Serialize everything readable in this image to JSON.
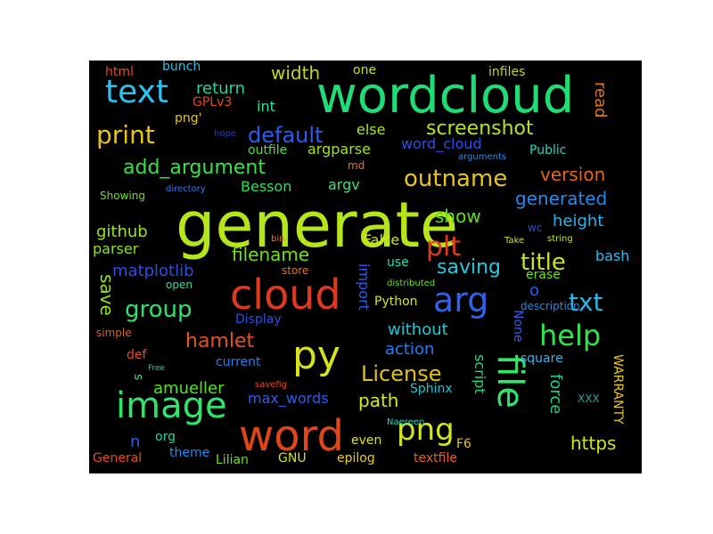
{
  "words": [
    {
      "text": "generate",
      "color": "#b6e619"
    },
    {
      "text": "wordcloud",
      "color": "#1fdc77"
    },
    {
      "text": "cloud",
      "color": "#e03a1e"
    },
    {
      "text": "word",
      "color": "#e0461c"
    },
    {
      "text": "image",
      "color": "#2ee66a"
    },
    {
      "text": "py",
      "color": "#d6e21c"
    },
    {
      "text": "text",
      "color": "#2bc3f0"
    },
    {
      "text": "file",
      "color": "#2fe86a"
    },
    {
      "text": "arg",
      "color": "#3060ee"
    },
    {
      "text": "print",
      "color": "#e8c31c"
    },
    {
      "text": "help",
      "color": "#2ee64c"
    },
    {
      "text": "png",
      "color": "#d2e61c"
    },
    {
      "text": "txt",
      "color": "#28b6e8"
    },
    {
      "text": "plt",
      "color": "#e03a1e"
    },
    {
      "text": "outname",
      "color": "#e8c41c"
    },
    {
      "text": "default",
      "color": "#2a5cf0"
    },
    {
      "text": "hamlet",
      "color": "#e8501c"
    },
    {
      "text": "License",
      "color": "#e0c01c"
    },
    {
      "text": "group",
      "color": "#30e26a"
    },
    {
      "text": "title",
      "color": "#c8e41c"
    },
    {
      "text": "add_argument",
      "color": "#3ae24a"
    },
    {
      "text": "screenshot",
      "color": "#b4e41c"
    },
    {
      "text": "saving",
      "color": "#24c8e0"
    },
    {
      "text": "filename",
      "color": "#6ee01c"
    },
    {
      "text": "version",
      "color": "#e8661c"
    },
    {
      "text": "generated",
      "color": "#1e8cf0"
    },
    {
      "text": "height",
      "color": "#2ab4ec"
    },
    {
      "text": "show",
      "color": "#5ee01c"
    },
    {
      "text": "width",
      "color": "#c8d41c"
    },
    {
      "text": "return",
      "color": "#1ed8a0"
    },
    {
      "text": "github",
      "color": "#9ce41c"
    },
    {
      "text": "parser",
      "color": "#8ee41c"
    },
    {
      "text": "matplotlib",
      "color": "#2850e4"
    },
    {
      "text": "save",
      "color": "#8ce41c"
    },
    {
      "text": "action",
      "color": "#2a7cf0"
    },
    {
      "text": "without",
      "color": "#1ec8d4"
    },
    {
      "text": "amueller",
      "color": "#4ee41c"
    },
    {
      "text": "max_words",
      "color": "#2a5cf0"
    },
    {
      "text": "path",
      "color": "#d8e61c"
    },
    {
      "text": "https",
      "color": "#c8e81c"
    },
    {
      "text": "force",
      "color": "#1ed08a"
    },
    {
      "text": "script",
      "color": "#1ed87e"
    },
    {
      "text": "import",
      "color": "#2a5cf0"
    },
    {
      "text": "word_cloud",
      "color": "#2a50e4"
    },
    {
      "text": "argparse",
      "color": "#a0e41c"
    },
    {
      "text": "else",
      "color": "#b0e41c"
    },
    {
      "text": "int",
      "color": "#2ae0a4"
    },
    {
      "text": "read",
      "color": "#e0781c"
    },
    {
      "text": "bash",
      "color": "#3ab8e8"
    },
    {
      "text": "Besson",
      "color": "#30e050"
    },
    {
      "text": "argv",
      "color": "#3ee07a"
    },
    {
      "text": "False",
      "color": "#c8e21c"
    },
    {
      "text": "use",
      "color": "#1ee0b0"
    },
    {
      "text": "Python",
      "color": "#d0e41c"
    },
    {
      "text": "square",
      "color": "#3ab4e8"
    },
    {
      "text": "Sphinx",
      "color": "#1ec6d8"
    },
    {
      "text": "WARRANTY",
      "color": "#e8c41c"
    },
    {
      "text": "None",
      "color": "#2a5cf0"
    },
    {
      "text": "XXX",
      "color": "#20a8a0"
    },
    {
      "text": "F6",
      "color": "#e8c01c"
    },
    {
      "text": "epilog",
      "color": "#e8cc1c"
    },
    {
      "text": "textfile",
      "color": "#e8621c"
    },
    {
      "text": "even",
      "color": "#d8e21c"
    },
    {
      "text": "GNU",
      "color": "#d0e21c"
    },
    {
      "text": "Lilian",
      "color": "#6ee01c"
    },
    {
      "text": "theme",
      "color": "#1e8cf0"
    },
    {
      "text": "General",
      "color": "#e84c1c"
    },
    {
      "text": "org",
      "color": "#1ed8a0"
    },
    {
      "text": "n",
      "color": "#2a5cf0"
    },
    {
      "text": "s",
      "color": "#2ae0a4"
    },
    {
      "text": "def",
      "color": "#e8501c"
    },
    {
      "text": "simple",
      "color": "#e85c1c"
    },
    {
      "text": "current",
      "color": "#2a7cf0"
    },
    {
      "text": "Display",
      "color": "#2a50e4"
    },
    {
      "text": "open",
      "color": "#2ae0a4"
    },
    {
      "text": "store",
      "color": "#e8761c"
    },
    {
      "text": "o",
      "color": "#2a5cf0"
    },
    {
      "text": "erase",
      "color": "#6ee01c"
    },
    {
      "text": "description",
      "color": "#1e8cf0"
    },
    {
      "text": "distributed",
      "color": "#6ee01c"
    },
    {
      "text": "Showing",
      "color": "#6ee01c"
    },
    {
      "text": "directory",
      "color": "#2a7cf0"
    },
    {
      "text": "outfile",
      "color": "#4ee040"
    },
    {
      "text": "md",
      "color": "#e8761c"
    },
    {
      "text": "Public",
      "color": "#1ed8c0"
    },
    {
      "text": "arguments",
      "color": "#1e8cf0"
    },
    {
      "text": "hope",
      "color": "#2040d0"
    },
    {
      "text": "png'",
      "color": "#e8c41c"
    },
    {
      "text": "GPLv3",
      "color": "#e8481c"
    },
    {
      "text": "html",
      "color": "#e8481c"
    },
    {
      "text": "bunch",
      "color": "#2ac0e8"
    },
    {
      "text": "one",
      "color": "#c8e21c"
    },
    {
      "text": "infiles",
      "color": "#c8d41c"
    },
    {
      "text": "bin",
      "color": "#e8761c"
    },
    {
      "text": "wc",
      "color": "#2a50e4"
    },
    {
      "text": "Take",
      "color": "#c8e21c"
    },
    {
      "text": "string",
      "color": "#c8e21c"
    },
    {
      "text": "Naereen",
      "color": "#1ed8c0"
    },
    {
      "text": "savefig",
      "color": "#e8481c"
    },
    {
      "text": "Free",
      "color": "#1ed8a0"
    }
  ]
}
